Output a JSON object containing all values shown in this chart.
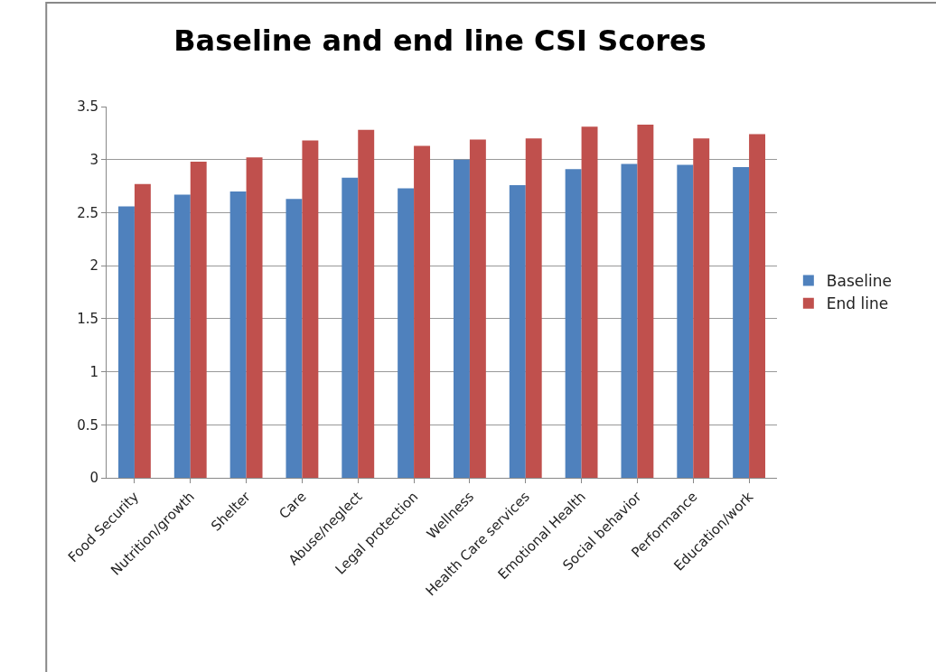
{
  "chart_data": {
    "type": "bar",
    "title": "Baseline and end line CSI Scores",
    "categories": [
      "Food Security",
      "Nutrition/growth",
      "Shelter",
      "Care",
      "Abuse/neglect",
      "Legal protection",
      "Wellness",
      "Health Care services",
      "Emotional Health",
      "Social behavior",
      "Performance",
      "Education/work"
    ],
    "series": [
      {
        "name": "Baseline",
        "color": "#4f81bd",
        "values": [
          2.56,
          2.67,
          2.7,
          2.63,
          2.83,
          2.73,
          3.0,
          2.76,
          2.91,
          2.96,
          2.95,
          2.93
        ]
      },
      {
        "name": "End line",
        "color": "#c0504d",
        "values": [
          2.77,
          2.98,
          3.02,
          3.18,
          3.28,
          3.13,
          3.19,
          3.2,
          3.31,
          3.33,
          3.2,
          3.24
        ]
      }
    ],
    "ylim": [
      0,
      3.5
    ],
    "yticks": [
      0,
      0.5,
      1,
      1.5,
      2,
      2.5,
      3,
      3.5
    ],
    "grid": "y",
    "legend": "right"
  }
}
